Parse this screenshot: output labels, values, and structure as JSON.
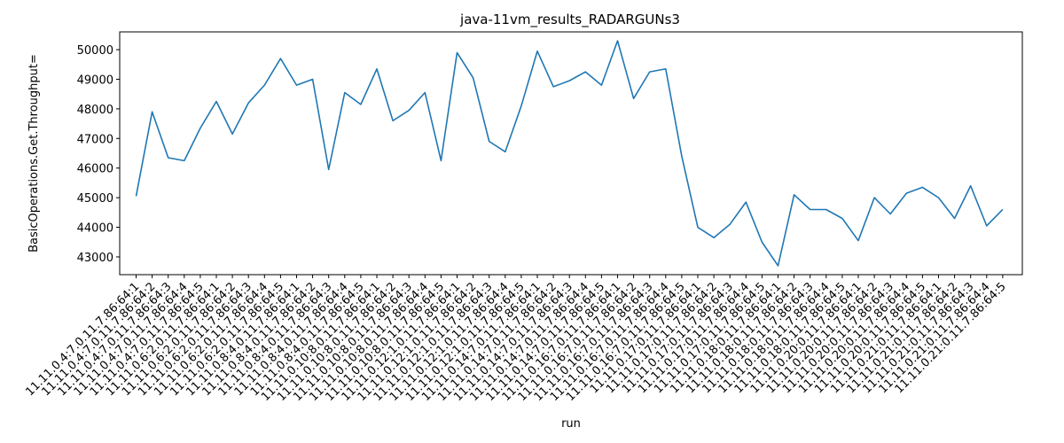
{
  "chart_data": {
    "type": "line",
    "title": "java-11vm_results_RADARGUNs3",
    "xlabel": "run",
    "ylabel": "BasicOperations.Get.Throughput=",
    "ylim": [
      42400,
      50600
    ],
    "yticks": [
      43000,
      44000,
      45000,
      46000,
      47000,
      48000,
      49000,
      50000
    ],
    "grid": false,
    "line_color": "#1f77b4",
    "categories": [
      "11.11.0.4:7.0.11.7.86:64:1",
      "11.11.0.4:7.0.11.7.86:64:2",
      "11.11.0.4:7.0.11.7.86:64:3",
      "11.11.0.4:7.0.11.7.86:64:4",
      "11.11.0.4:7.0.11.7.86:64:5",
      "11.11.0.6:2.0.11.7.86:64:1",
      "11.11.0.6:2.0.11.7.86:64:2",
      "11.11.0.6:2.0.11.7.86:64:3",
      "11.11.0.6:2.0.11.7.86:64:4",
      "11.11.0.6:2.0.11.7.86:64:5",
      "11.11.0.8:4.0.11.7.86:64:1",
      "11.11.0.8:4.0.11.7.86:64:2",
      "11.11.0.8:4.0.11.7.86:64:3",
      "11.11.0.8:4.0.11.7.86:64:4",
      "11.11.0.8:4.0.11.7.86:64:5",
      "11.11.0.10:8.0.11.7.86:64:1",
      "11.11.0.10:8.0.11.7.86:64:2",
      "11.11.0.10:8.0.11.7.86:64:3",
      "11.11.0.10:8.0.11.7.86:64:4",
      "11.11.0.10:8.0.11.7.86:64:5",
      "11.11.0.12:1.0.11.7.86:64:1",
      "11.11.0.12:1.0.11.7.86:64:2",
      "11.11.0.12:1.0.11.7.86:64:3",
      "11.11.0.12:1.0.11.7.86:64:4",
      "11.11.0.12:1.0.11.7.86:64:5",
      "11.11.0.14:7.0.11.7.86:64:1",
      "11.11.0.14:7.0.11.7.86:64:2",
      "11.11.0.14:7.0.11.7.86:64:3",
      "11.11.0.14:7.0.11.7.86:64:4",
      "11.11.0.14:7.0.11.7.86:64:5",
      "11.11.0.16:7.0.11.7.86:64:1",
      "11.11.0.16:7.0.11.7.86:64:2",
      "11.11.0.16:7.0.11.7.86:64:3",
      "11.11.0.16:7.0.11.7.86:64:4",
      "11.11.0.16:7.0.11.7.86:64:5",
      "11.11.0.17:0.11.7.86:64:1",
      "11.11.0.17:0.11.7.86:64:2",
      "11.11.0.17:0.11.7.86:64:3",
      "11.11.0.17:0.11.7.86:64:4",
      "11.11.0.17:0.11.7.86:64:5",
      "11.11.0.18:0.11.7.86:64:1",
      "11.11.0.18:0.11.7.86:64:2",
      "11.11.0.18:0.11.7.86:64:3",
      "11.11.0.18:0.11.7.86:64:4",
      "11.11.0.18:0.11.7.86:64:5",
      "11.11.0.20:0.11.7.86:64:1",
      "11.11.0.20:0.11.7.86:64:2",
      "11.11.0.20:0.11.7.86:64:3",
      "11.11.0.20:0.11.7.86:64:4",
      "11.11.0.20:0.11.7.86:64:5",
      "11.11.0.21:0.11.7.86:64:1",
      "11.11.0.21:0.11.7.86:64:2",
      "11.11.0.21:0.11.7.86:64:3",
      "11.11.0.21:0.11.7.86:64:4",
      "11.11.0.21:0.11.7.86:64:5"
    ],
    "series": [
      {
        "values": [
          45050,
          47900,
          46350,
          46250,
          47350,
          48250,
          47150,
          48200,
          48800,
          49700,
          48800,
          49000,
          45950,
          48550,
          48150,
          49350,
          47600,
          47950,
          48550,
          46250,
          49900,
          49050,
          46900,
          46550,
          48100,
          49950,
          48750,
          48950,
          49250,
          48800,
          50300,
          48350,
          49250,
          49350,
          46400,
          44000,
          43650,
          44100,
          44850,
          43500,
          42700,
          45100,
          44600,
          44600,
          44300,
          43550,
          45000,
          44450,
          45150,
          45350,
          45000,
          44300,
          45400,
          44050,
          44600
        ]
      }
    ]
  }
}
